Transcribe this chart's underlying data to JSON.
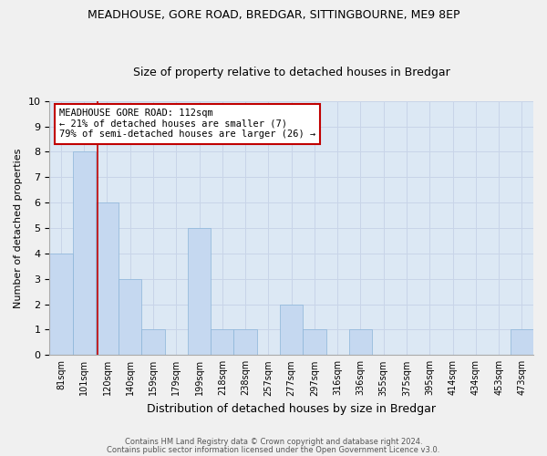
{
  "title": "MEADHOUSE, GORE ROAD, BREDGAR, SITTINGBOURNE, ME9 8EP",
  "subtitle": "Size of property relative to detached houses in Bredgar",
  "xlabel": "Distribution of detached houses by size in Bredgar",
  "ylabel": "Number of detached properties",
  "categories": [
    "81sqm",
    "101sqm",
    "120sqm",
    "140sqm",
    "159sqm",
    "179sqm",
    "199sqm",
    "218sqm",
    "238sqm",
    "257sqm",
    "277sqm",
    "297sqm",
    "316sqm",
    "336sqm",
    "355sqm",
    "375sqm",
    "395sqm",
    "414sqm",
    "434sqm",
    "453sqm",
    "473sqm"
  ],
  "values": [
    4,
    8,
    6,
    3,
    1,
    0,
    5,
    1,
    1,
    0,
    2,
    1,
    0,
    1,
    0,
    0,
    0,
    0,
    0,
    0,
    1
  ],
  "bar_color": "#c5d8f0",
  "bar_edge_color": "#8ab4d8",
  "highlight_line_color": "#c00000",
  "annotation_text": "MEADHOUSE GORE ROAD: 112sqm\n← 21% of detached houses are smaller (7)\n79% of semi-detached houses are larger (26) →",
  "annotation_box_color": "#ffffff",
  "annotation_box_edge": "#c00000",
  "ylim": [
    0,
    10
  ],
  "yticks": [
    0,
    1,
    2,
    3,
    4,
    5,
    6,
    7,
    8,
    9,
    10
  ],
  "grid_color": "#c8d4e8",
  "background_color": "#dce8f4",
  "fig_background": "#f0f0f0",
  "footer_line1": "Contains HM Land Registry data © Crown copyright and database right 2024.",
  "footer_line2": "Contains public sector information licensed under the Open Government Licence v3.0.",
  "title_fontsize": 9,
  "subtitle_fontsize": 9,
  "tick_fontsize": 7,
  "ylabel_fontsize": 8,
  "xlabel_fontsize": 9
}
